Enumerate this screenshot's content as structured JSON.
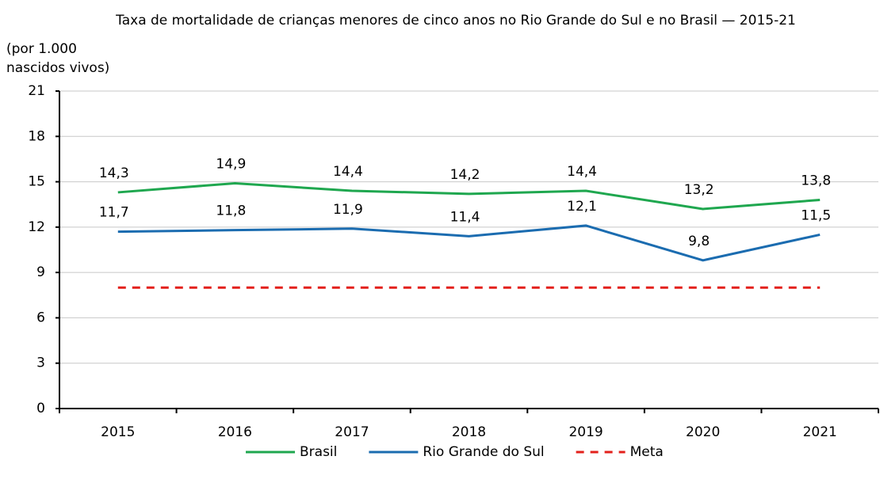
{
  "chart_data": {
    "type": "line",
    "title": "Taxa de mortalidade de crianças menores de cinco anos no Rio Grande do Sul e no Brasil — 2015-21",
    "y_label": "(por 1.000 nascidos vivos)",
    "categories": [
      "2015",
      "2016",
      "2017",
      "2018",
      "2019",
      "2020",
      "2021"
    ],
    "series": [
      {
        "name": "Brasil",
        "color": "#1fa74f",
        "values": [
          14.3,
          14.9,
          14.4,
          14.2,
          14.4,
          13.2,
          13.8
        ],
        "value_labels": [
          "14,3",
          "14,9",
          "14,4",
          "14,2",
          "14,4",
          "13,2",
          "13,8"
        ]
      },
      {
        "name": "Rio Grande do Sul",
        "color": "#1b6cb0",
        "values": [
          11.7,
          11.8,
          11.9,
          11.4,
          12.1,
          9.8,
          11.5
        ],
        "value_labels": [
          "11,7",
          "11,8",
          "11,9",
          "11,4",
          "12,1",
          "9,8",
          "11,5"
        ]
      },
      {
        "name": "Meta",
        "color": "#e3201b",
        "dashed": true,
        "values": [
          8,
          8,
          8,
          8,
          8,
          8,
          8
        ]
      }
    ],
    "ylim": [
      0,
      21
    ],
    "yticks": [
      0,
      3,
      6,
      9,
      12,
      15,
      18,
      21
    ],
    "grid": true,
    "legend": "bottom"
  }
}
